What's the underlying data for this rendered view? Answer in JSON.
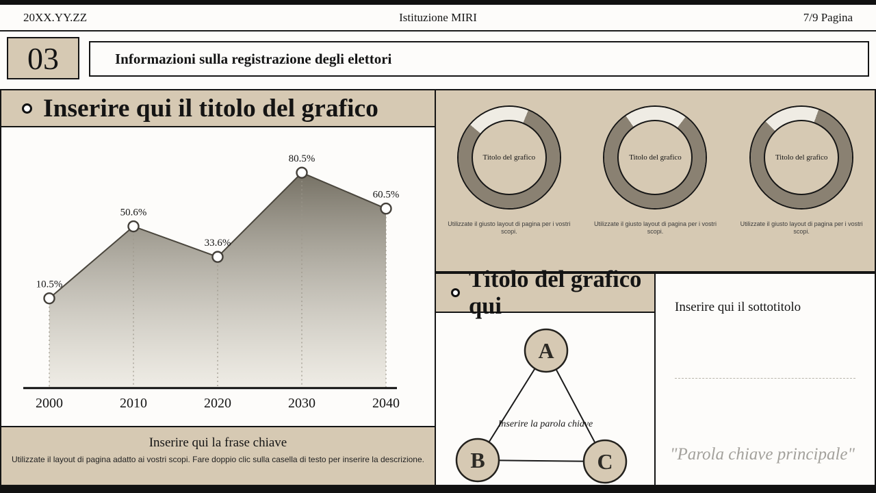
{
  "header": {
    "date": "20XX.YY.ZZ",
    "title": "Istituzione MIRI",
    "page": "7/9 Pagina"
  },
  "section": {
    "number": "03",
    "title": "Informazioni sulla registrazione degli elettori"
  },
  "chart_data": [
    {
      "type": "area",
      "title": "Inserire qui il titolo del grafico",
      "categories": [
        "2000",
        "2010",
        "2020",
        "2030",
        "2040"
      ],
      "values": [
        10.5,
        50.6,
        33.6,
        80.5,
        60.5
      ],
      "data_labels": [
        "10.5%",
        "50.6%",
        "33.6%",
        "80.5%",
        "60.5%"
      ],
      "xlabel": "",
      "ylabel": "",
      "ylim": [
        0,
        100
      ],
      "grid": false,
      "legend": "none",
      "marker": "open-circle",
      "fill": "gray-gradient"
    },
    {
      "type": "donut",
      "items": [
        {
          "label": "Titolo del grafico",
          "caption": "Utilizzate il giusto layout di pagina per i vostri scopi.",
          "percent": 80,
          "start_deg": -50
        },
        {
          "label": "Titolo del grafico",
          "caption": "Utilizzate il giusto layout di pagina per i vostri scopi.",
          "percent": 80,
          "start_deg": -35
        },
        {
          "label": "Titolo del grafico",
          "caption": "Utilizzate il giusto layout di pagina per i vostri scopi.",
          "percent": 82,
          "start_deg": -45
        }
      ]
    }
  ],
  "left_footer": {
    "headline": "Inserire qui la frase chiave",
    "description": "Utilizzate il layout di pagina adatto ai vostri scopi. Fare doppio clic sulla casella di testo per inserire la descrizione."
  },
  "diagram_panel": {
    "title": "Titolo del grafico qui",
    "nodes": [
      "A",
      "B",
      "C"
    ],
    "center_label": "Inserire la parola chiave"
  },
  "subtitle_panel": {
    "title": "Inserire qui il sottotitolo",
    "keyword": "\"Parola chiave principale\""
  },
  "colors": {
    "accent_beige": "#d6c9b3",
    "ink": "#141414",
    "ring_dark": "#8a8172",
    "ring_light": "#efece4",
    "area_top": "#6e695c",
    "area_bottom": "#e3dfd4",
    "keyword_gray": "#a3a19c"
  }
}
